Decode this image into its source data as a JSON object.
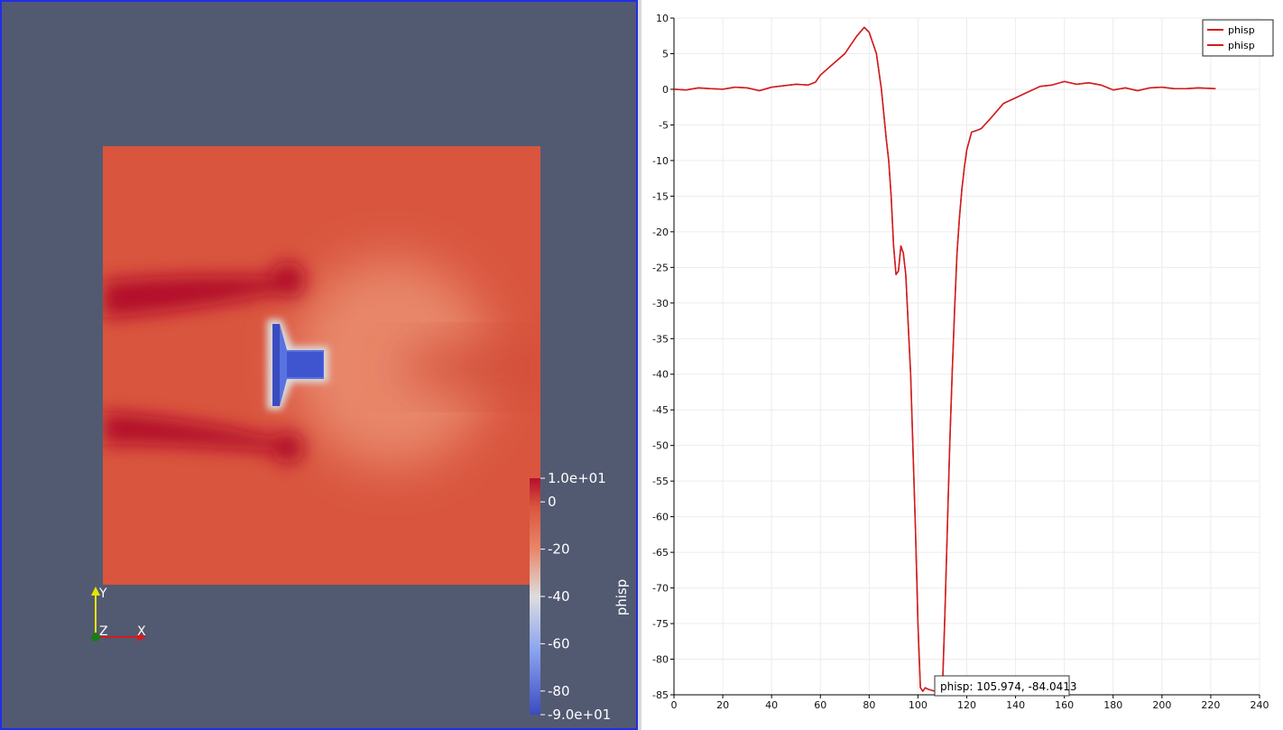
{
  "render_view": {
    "field_name": "phisp",
    "colorbar": {
      "title": "phisp",
      "labels": [
        "1.0e+01",
        "0",
        "-20",
        "-40",
        "-60",
        "-80",
        "-9.0e+01"
      ],
      "values": [
        10,
        0,
        -20,
        -40,
        -60,
        -80,
        -90
      ],
      "range": [
        -90,
        10
      ]
    },
    "axes": {
      "x": "X",
      "y": "Y",
      "z": "Z"
    },
    "colors": {
      "background": "#525a72",
      "field_base": "#d9553e",
      "deep_red": "#b40f2b",
      "light_region": "#e8876a",
      "min_blue": "#3a4cc0",
      "white": "#dddddd"
    }
  },
  "chart": {
    "tooltip": "phisp: 105.974, -84.0413",
    "legend": [
      "phisp",
      "phisp"
    ],
    "line_color": "#d21c1c"
  },
  "chart_data": {
    "type": "line",
    "xlim": [
      0,
      240
    ],
    "ylim": [
      -85,
      10
    ],
    "x_ticks": [
      0,
      20,
      40,
      60,
      80,
      100,
      120,
      140,
      160,
      180,
      200,
      220,
      240
    ],
    "y_ticks": [
      10,
      5,
      0,
      -5,
      -10,
      -15,
      -20,
      -25,
      -30,
      -35,
      -40,
      -45,
      -50,
      -55,
      -60,
      -65,
      -70,
      -75,
      -80,
      -85
    ],
    "grid": true,
    "legend_position": "top-right",
    "series": [
      {
        "name": "phisp",
        "x": [
          0,
          5,
          10,
          15,
          20,
          25,
          30,
          35,
          40,
          45,
          50,
          55,
          58,
          60,
          65,
          70,
          75,
          78,
          80,
          83,
          85,
          87,
          88,
          89,
          90,
          91,
          92,
          93,
          94,
          95,
          97,
          99,
          100,
          101,
          102,
          103,
          104,
          106,
          108,
          110,
          111,
          112,
          113,
          114,
          115,
          116,
          117,
          118,
          119,
          120,
          122,
          124,
          126,
          130,
          135,
          140,
          145,
          150,
          155,
          160,
          165,
          170,
          175,
          180,
          185,
          190,
          195,
          200,
          205,
          210,
          215,
          222
        ],
        "y": [
          0,
          -0.1,
          0.2,
          0.1,
          0,
          0.3,
          0.2,
          -0.2,
          0.3,
          0.5,
          0.7,
          0.6,
          1,
          2,
          3.5,
          5,
          7.5,
          8.7,
          8,
          5,
          0,
          -7,
          -10,
          -15,
          -22,
          -26,
          -25.5,
          -22,
          -23,
          -26,
          -40,
          -62,
          -75,
          -84,
          -84.5,
          -84,
          -84.2,
          -84.4,
          -84.6,
          -84.3,
          -74,
          -62,
          -50,
          -40,
          -31,
          -23,
          -18,
          -14,
          -11,
          -8.5,
          -6,
          -5.8,
          -5.5,
          -4,
          -2,
          -1.2,
          -0.4,
          0.4,
          0.6,
          1.1,
          0.7,
          0.9,
          0.6,
          -0.1,
          0.2,
          -0.2,
          0.2,
          0.3,
          0.1,
          0.1,
          0.2,
          0.1
        ]
      },
      {
        "name": "phisp",
        "x": [
          0,
          5,
          10,
          15,
          20,
          25,
          30,
          35,
          40,
          45,
          50,
          55,
          58,
          60,
          65,
          70,
          75,
          78,
          80,
          83,
          85,
          87,
          88,
          89,
          90,
          91,
          92,
          93,
          94,
          95,
          97,
          99,
          100,
          101,
          102,
          103,
          104,
          106,
          108,
          110,
          111,
          112,
          113,
          114,
          115,
          116,
          117,
          118,
          119,
          120,
          122,
          124,
          126,
          130,
          135,
          140,
          145,
          150,
          155,
          160,
          165,
          170,
          175,
          180,
          185,
          190,
          195,
          200,
          205,
          210,
          215,
          222
        ],
        "y": [
          0,
          -0.1,
          0.2,
          0.1,
          0,
          0.3,
          0.2,
          -0.2,
          0.3,
          0.5,
          0.7,
          0.6,
          1,
          2,
          3.5,
          5,
          7.5,
          8.7,
          8,
          5,
          0,
          -7,
          -10,
          -15,
          -22,
          -26,
          -25.5,
          -22,
          -23,
          -26,
          -40,
          -62,
          -75,
          -84,
          -84.5,
          -84,
          -84.2,
          -84.4,
          -84.6,
          -84.3,
          -74,
          -62,
          -50,
          -40,
          -31,
          -23,
          -18,
          -14,
          -11,
          -8.5,
          -6,
          -5.8,
          -5.5,
          -4,
          -2,
          -1.2,
          -0.4,
          0.4,
          0.6,
          1.1,
          0.7,
          0.9,
          0.6,
          -0.1,
          0.2,
          -0.2,
          0.2,
          0.3,
          0.1,
          0.1,
          0.2,
          0.1
        ]
      }
    ]
  }
}
